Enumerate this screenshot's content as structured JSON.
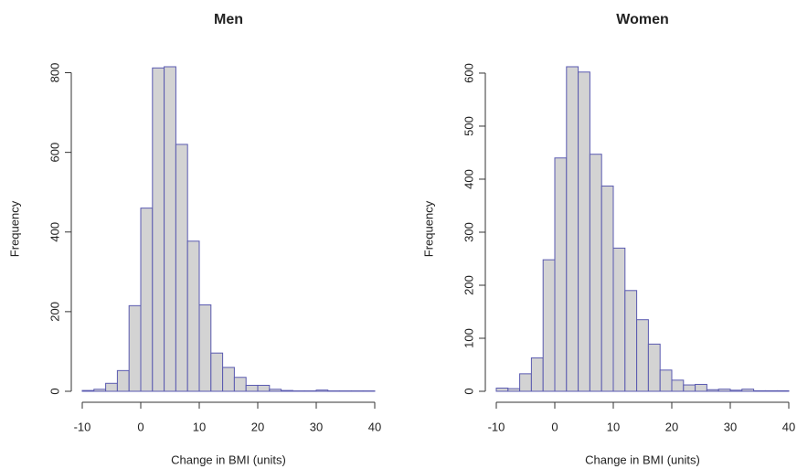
{
  "chart_data": [
    {
      "type": "histogram",
      "title": "Men",
      "xlabel": "Change in BMI (units)",
      "ylabel": "Frequency",
      "bins": [
        -10,
        -8,
        -6,
        -4,
        -2,
        0,
        2,
        4,
        6,
        8,
        10,
        12,
        14,
        16,
        18,
        20,
        22,
        24,
        26,
        28,
        30,
        32,
        34,
        36,
        38,
        40
      ],
      "values": [
        2,
        5,
        20,
        52,
        215,
        460,
        812,
        815,
        620,
        377,
        217,
        96,
        60,
        35,
        15,
        15,
        5,
        2,
        1,
        1,
        3,
        1,
        1,
        1,
        1
      ],
      "color": "#d3d3d3",
      "edgecolor": "#5a5ab0",
      "xlim": [
        -10,
        40
      ],
      "xticks": [
        -10,
        0,
        10,
        20,
        30,
        40
      ],
      "ylim": [
        0,
        815
      ],
      "yticks": [
        0,
        200,
        400,
        600,
        800
      ]
    },
    {
      "type": "histogram",
      "title": "Women",
      "xlabel": "Change in BMI (units)",
      "ylabel": "Frequency",
      "bins": [
        -10,
        -8,
        -6,
        -4,
        -2,
        0,
        2,
        4,
        6,
        8,
        10,
        12,
        14,
        16,
        18,
        20,
        22,
        24,
        26,
        28,
        30,
        32,
        34,
        36,
        38,
        40
      ],
      "values": [
        6,
        5,
        33,
        63,
        248,
        440,
        612,
        602,
        447,
        387,
        270,
        190,
        135,
        89,
        40,
        21,
        12,
        13,
        3,
        4,
        2,
        4,
        1,
        1,
        1
      ],
      "color": "#d3d3d3",
      "edgecolor": "#5a5ab0",
      "xlim": [
        -10,
        40
      ],
      "xticks": [
        -10,
        0,
        10,
        20,
        30,
        40
      ],
      "ylim": [
        0,
        612
      ],
      "yticks": [
        0,
        100,
        200,
        300,
        400,
        500,
        600
      ]
    }
  ]
}
